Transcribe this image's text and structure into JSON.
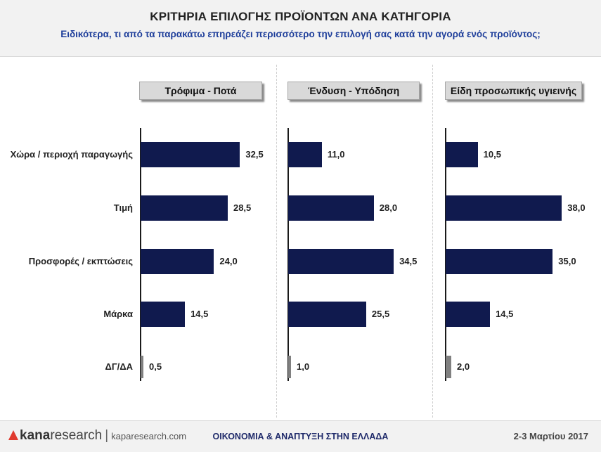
{
  "header": {
    "title": "ΚΡΙΤΗΡΙΑ ΕΠΙΛΟΓΗΣ ΠΡΟΪΟΝΤΩΝ ΑΝΑ ΚΑΤΗΓΟΡΙΑ",
    "subtitle": "Ειδικότερα, τι από τα παρακάτω επηρεάζει περισσότερο την επιλογή σας κατά την αγορά ενός προϊόντος;"
  },
  "chart_data": {
    "type": "bar",
    "orientation": "horizontal",
    "categories": [
      "Χώρα / περιοχή παραγωγής",
      "Τιμή",
      "Προσφορές / εκπτώσεις",
      "Μάρκα",
      "ΔΓ/ΔΑ"
    ],
    "series": [
      {
        "name": "Τρόφιμα - Ποτά",
        "values": [
          32.5,
          28.5,
          24.0,
          14.5,
          0.5
        ],
        "value_labels": [
          "32,5",
          "28,5",
          "24,0",
          "14,5",
          "0,5"
        ]
      },
      {
        "name": "Ένδυση - Υπόδηση",
        "values": [
          11.0,
          28.0,
          34.5,
          25.5,
          1.0
        ],
        "value_labels": [
          "11,0",
          "28,0",
          "34,5",
          "25,5",
          "1,0"
        ]
      },
      {
        "name": "Είδη προσωπικής υγιεινής",
        "values": [
          10.5,
          38.0,
          35.0,
          14.5,
          2.0
        ],
        "value_labels": [
          "10,5",
          "38,0",
          "35,0",
          "14,5",
          "2,0"
        ]
      }
    ],
    "bar_color": "#101a4e",
    "dk_bar_color": "#808080",
    "grid": false
  },
  "footer": {
    "logo_kana": "kana",
    "logo_research": "research",
    "logo_separator": "|",
    "site": "kaparesearch.com",
    "center_text": "ΟΙΚΟΝΟΜΙΑ & ΑΝΑΠΤΥΞΗ ΣΤΗΝ ΕΛΛΑΔΑ",
    "date": "2-3 Μαρτίου 2017"
  }
}
